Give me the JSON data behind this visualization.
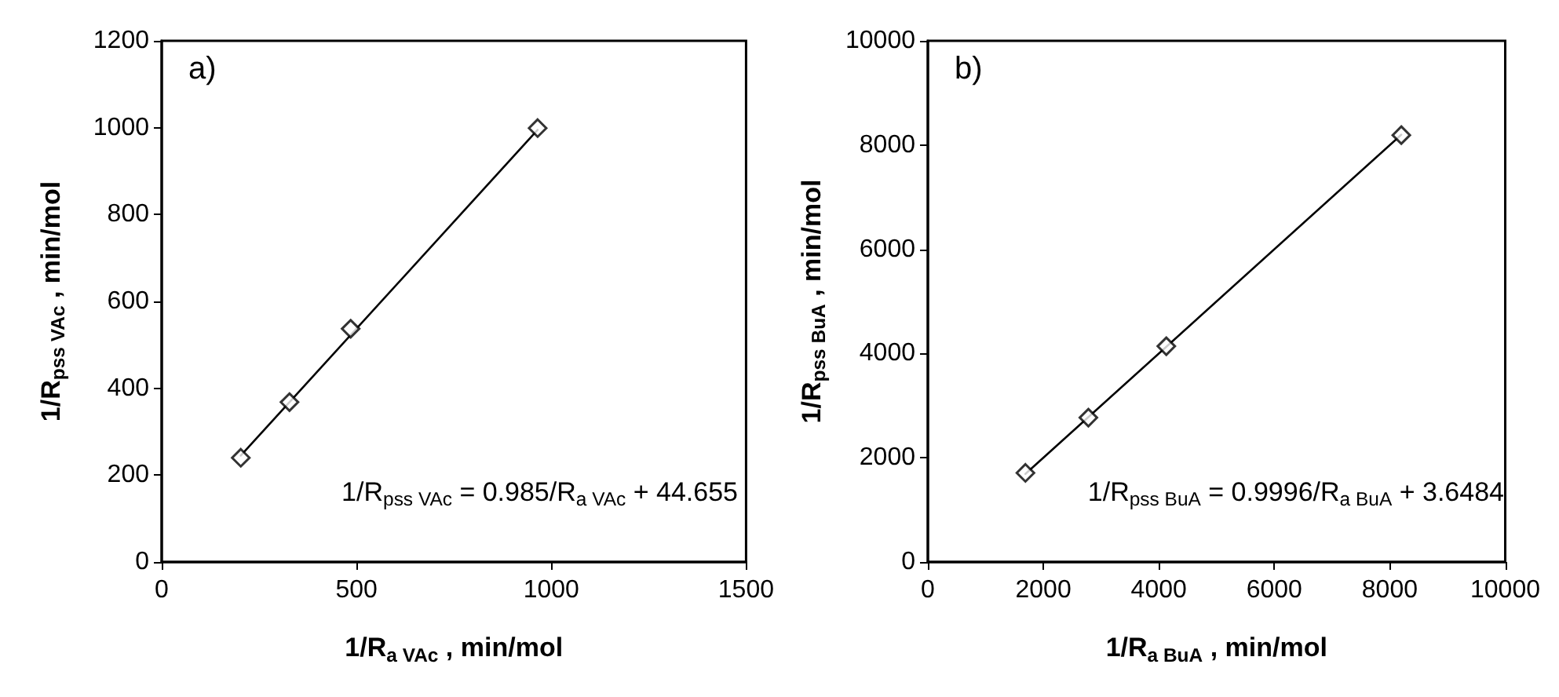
{
  "chart_data": [
    {
      "type": "scatter",
      "title": "a)",
      "xlabel": "1/R$_{a VAc}$ , min/mol",
      "ylabel": "1/R$_{pss VAc}$ , min/mol",
      "annotations": [
        "1/R$_{pss VAc}$ = 0.985/R$_{a VAc}$ + 44.655"
      ],
      "xlim": [
        0,
        1500
      ],
      "xticks": [
        0,
        500,
        1000,
        1500
      ],
      "ylim": [
        0,
        1200
      ],
      "yticks": [
        0,
        200,
        400,
        600,
        800,
        1000,
        1200
      ],
      "grid": false,
      "marker": "diamond",
      "line_style": "solid",
      "series": [
        {
          "color": "#000000",
          "x": [
            203,
            328,
            485,
            965
          ],
          "values": [
            240,
            368,
            537,
            999
          ]
        },
        {
          "type": "line",
          "marker": "none",
          "color": "#000000",
          "x": [
            203,
            965
          ],
          "values": [
            245,
            995
          ]
        }
      ]
    },
    {
      "type": "scatter",
      "title": "b)",
      "xlabel": "1/R$_{a BuA}$ , min/mol",
      "ylabel": "1/R$_{pss BuA}$ , min/mol",
      "annotations": [
        "1/R$_{pss BuA}$ = 0.9996/R$_{a BuA}$ + 3.6484"
      ],
      "xlim": [
        0,
        10000
      ],
      "xticks": [
        0,
        2000,
        4000,
        6000,
        8000,
        10000
      ],
      "ylim": [
        0,
        10000
      ],
      "yticks": [
        0,
        2000,
        4000,
        6000,
        8000,
        10000
      ],
      "grid": false,
      "marker": "diamond",
      "line_style": "solid",
      "series": [
        {
          "color": "#000000",
          "x": [
            1690,
            2780,
            4130,
            8200
          ],
          "values": [
            1710,
            2770,
            4140,
            8190
          ]
        },
        {
          "type": "line",
          "marker": "none",
          "color": "#000000",
          "x": [
            1690,
            8200
          ],
          "values": [
            1690,
            8200
          ]
        }
      ]
    }
  ]
}
